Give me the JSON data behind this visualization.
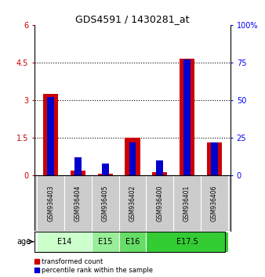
{
  "title": "GDS4591 / 1430281_at",
  "samples": [
    "GSM936403",
    "GSM936404",
    "GSM936405",
    "GSM936402",
    "GSM936400",
    "GSM936401",
    "GSM936406"
  ],
  "red_values": [
    3.25,
    0.18,
    0.05,
    1.5,
    0.13,
    4.65,
    1.3
  ],
  "blue_values_pct": [
    52,
    12,
    8,
    22,
    10,
    77,
    22
  ],
  "ylim_left": [
    0,
    6
  ],
  "ylim_right": [
    0,
    100
  ],
  "yticks_left": [
    0,
    1.5,
    3.0,
    4.5,
    6.0
  ],
  "yticks_right": [
    0,
    25,
    50,
    75,
    100
  ],
  "ytick_labels_left": [
    "0",
    "1.5",
    "3",
    "4.5",
    "6"
  ],
  "ytick_labels_right": [
    "0",
    "25",
    "50",
    "75",
    "100%"
  ],
  "bar_width": 0.55,
  "blue_bar_width": 0.25,
  "red_color": "#cc0000",
  "blue_color": "#0000cc",
  "sample_bg_color": "#cccccc",
  "plot_bg": "#ffffff",
  "dotted_yticks": [
    1.5,
    3.0,
    4.5
  ],
  "legend_red": "transformed count",
  "legend_blue": "percentile rank within the sample",
  "sample_ages": [
    0,
    0,
    1,
    2,
    3,
    3,
    3
  ],
  "age_labels": [
    "E14",
    "E15",
    "E16",
    "E17.5"
  ],
  "age_colors": [
    "#ccffcc",
    "#99ee99",
    "#66dd66",
    "#33cc33"
  ]
}
